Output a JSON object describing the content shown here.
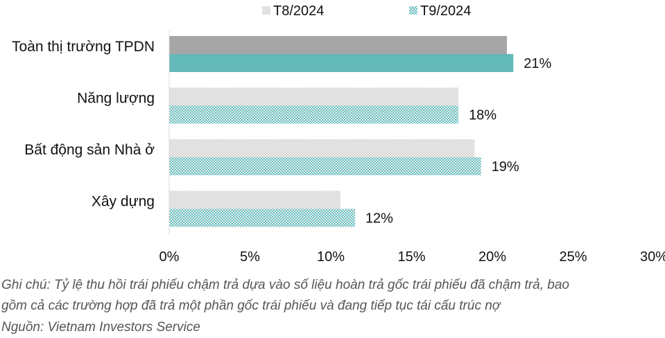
{
  "chart_data": {
    "type": "bar",
    "orientation": "horizontal",
    "categories": [
      "Toàn thị trường TPDN",
      "Năng lượng",
      "Bất động sản Nhà ở",
      "Xây dựng"
    ],
    "series": [
      {
        "name": "T8/2024",
        "values": [
          20.9,
          17.9,
          18.9,
          10.6
        ],
        "color": "#a6a6a6",
        "pattern": "dotted"
      },
      {
        "name": "T9/2024",
        "values": [
          21.3,
          17.9,
          19.3,
          11.5
        ],
        "color": "#63b8b8",
        "pattern": "dotted"
      }
    ],
    "data_labels": [
      "21%",
      "18%",
      "19%",
      "12%"
    ],
    "x_ticks": [
      "0%",
      "5%",
      "10%",
      "15%",
      "20%",
      "25%",
      "30%"
    ],
    "xlim": [
      0,
      30
    ],
    "legend_position": "top",
    "grid": false
  },
  "notes": {
    "line1": "Ghi chú: Tỷ lệ thu hồi trái phiếu chậm trả dựa vào số liệu hoàn trả gốc trái phiếu đã chậm trả, bao",
    "line2": "gồm cả các trường hợp đã trả một phần gốc trái phiếu và đang tiếp tục tái cấu trúc nợ",
    "source": "Nguồn: Vietnam Investors Service"
  }
}
